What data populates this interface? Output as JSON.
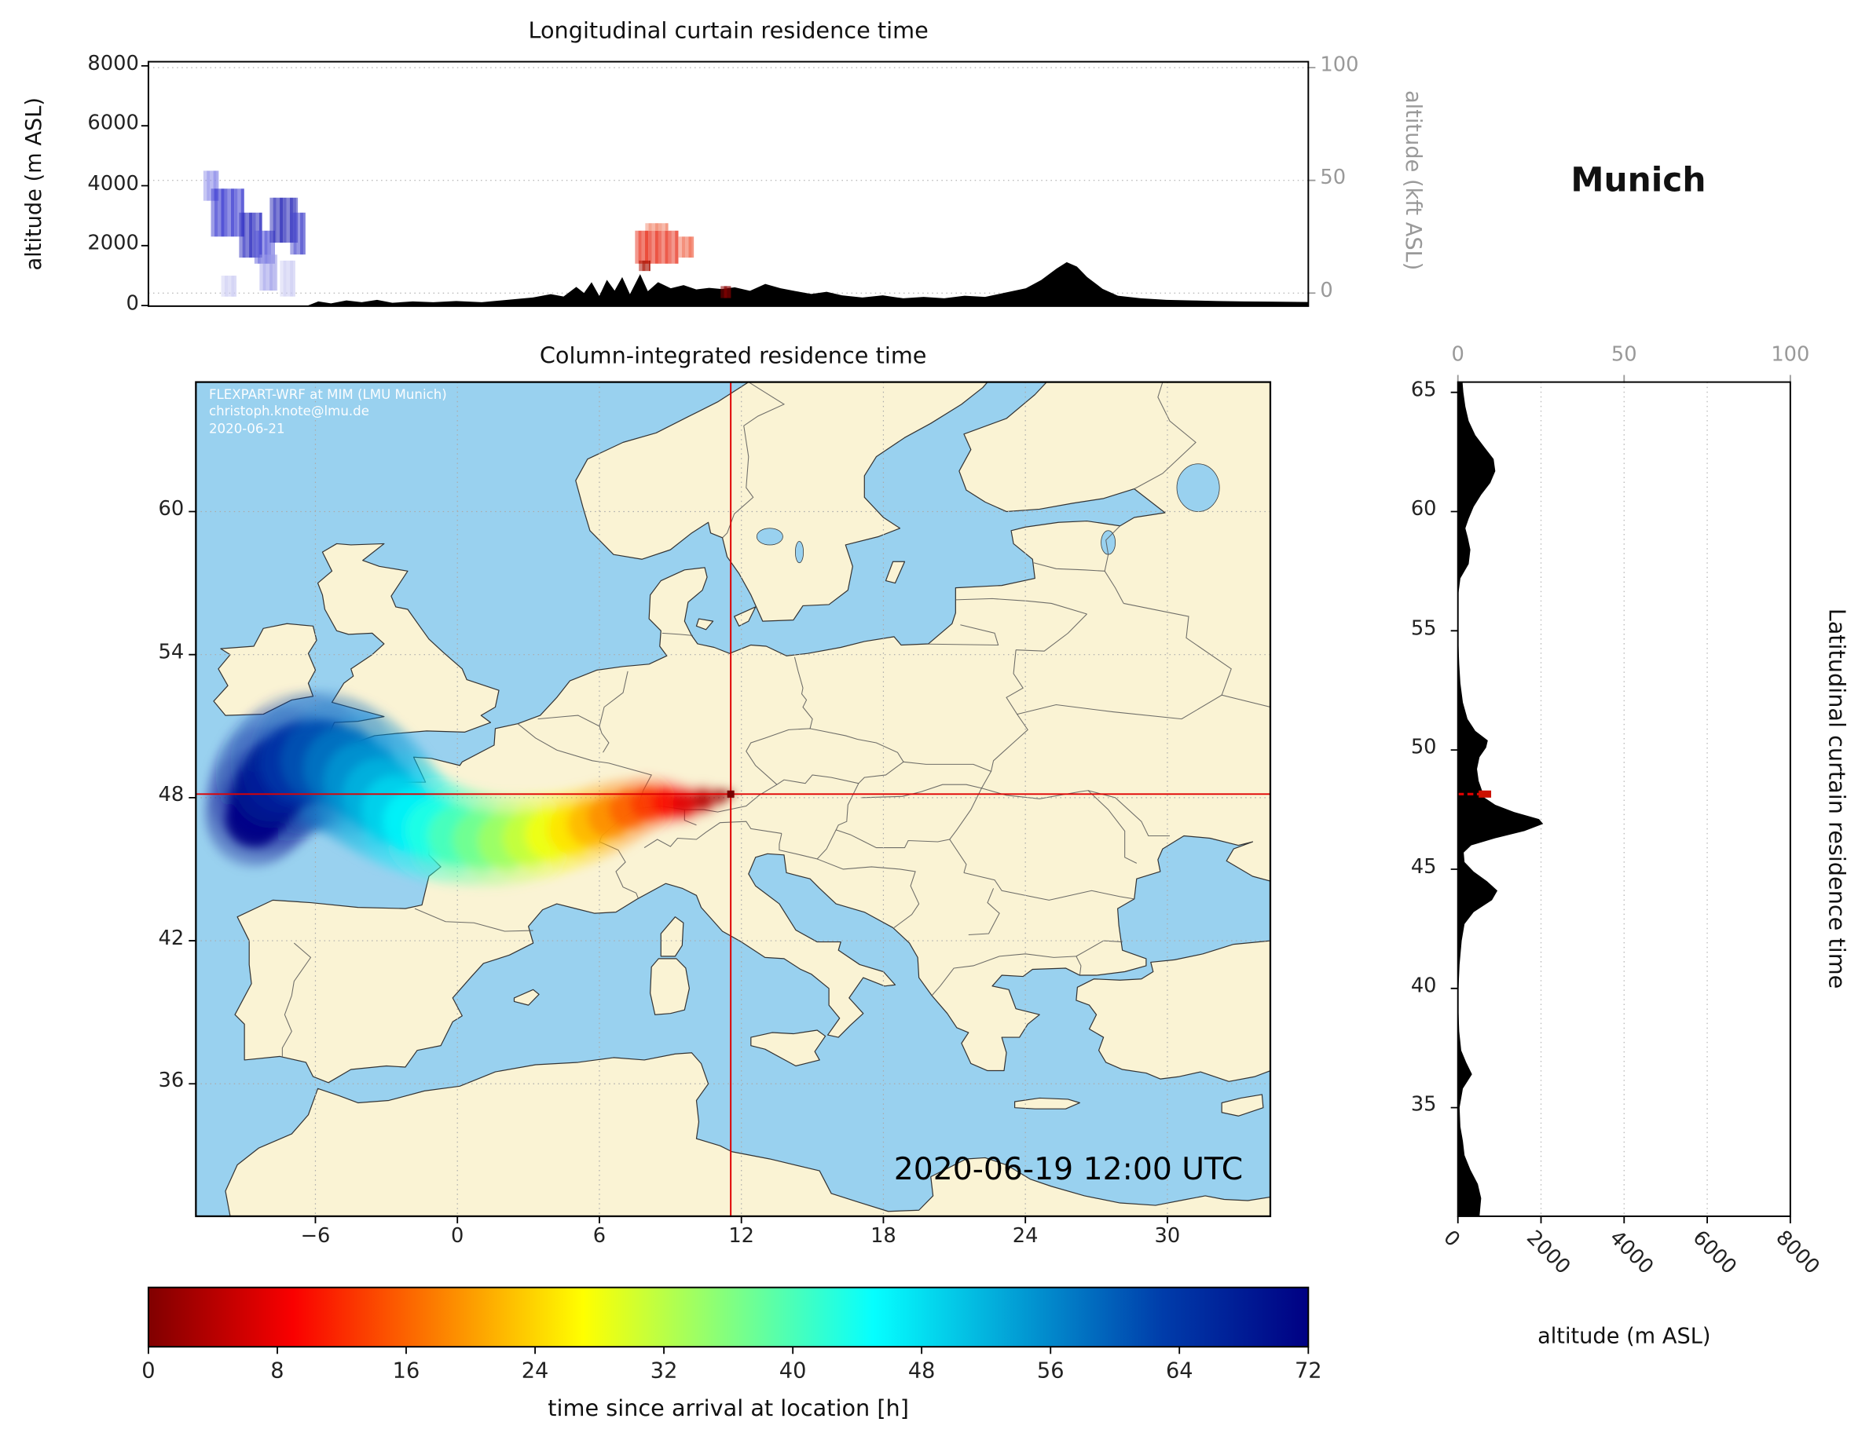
{
  "titles": {
    "location": "Munich"
  },
  "axis_labels": {
    "alt_m": "altitude (m ASL)",
    "alt_kft": "altitude (kft ASL)",
    "alt_m_right": "altitude (m ASL)"
  },
  "overlay": {
    "line1": "FLEXPART-WRF at MIM (LMU Munich)",
    "line2": "christoph.knote@lmu.de",
    "line3": "2020-06-21",
    "datetime": "2020-06-19 12:00 UTC"
  },
  "ticks": {
    "top_left": [
      "8000",
      "6000",
      "4000",
      "2000",
      "0"
    ],
    "top_right": [
      "100",
      "50",
      "0"
    ],
    "map_lon": [
      "−6",
      "0",
      "6",
      "12",
      "18",
      "24",
      "30"
    ],
    "map_lat": [
      "60",
      "54",
      "48",
      "42",
      "36"
    ],
    "right_lat": [
      "65",
      "60",
      "55",
      "50",
      "45",
      "40",
      "35"
    ],
    "right_top": [
      "0",
      "50",
      "100"
    ],
    "right_bottom": [
      "0",
      "2000",
      "4000",
      "6000",
      "8000"
    ],
    "colorbar": [
      "0",
      "8",
      "16",
      "24",
      "32",
      "40",
      "48",
      "56",
      "64",
      "72"
    ]
  },
  "colors": {
    "land": "#faf3d4",
    "ocean": "#99d1ef",
    "coast": "#333333",
    "border": "#555555",
    "crosshair": "#e00000",
    "terrain": "#000000",
    "axis_gray": "#999999",
    "grid": "#aaaaaa"
  },
  "chart_data": [
    {
      "type": "heatmap",
      "name": "longitudinal-curtain",
      "title": "Longitudinal curtain residence time",
      "lon_range": [
        -11.05,
        34.36
      ],
      "alt_range_m": [
        0,
        8160
      ],
      "alt_ticks_m": [
        0,
        2000,
        4000,
        6000,
        8000
      ],
      "alt_kft_ticks": [
        0,
        50,
        100
      ],
      "patches": [
        {
          "lon": [
            -8.9,
            -8.3
          ],
          "alt": [
            3500,
            4500
          ],
          "color": "#8888e8",
          "alpha": 0.85
        },
        {
          "lon": [
            -8.6,
            -7.3
          ],
          "alt": [
            2300,
            3900
          ],
          "color": "#3b3bd0",
          "alpha": 0.9
        },
        {
          "lon": [
            -7.5,
            -6.6
          ],
          "alt": [
            1600,
            3100
          ],
          "color": "#2f2fc0",
          "alpha": 0.9
        },
        {
          "lon": [
            -6.9,
            -6.1
          ],
          "alt": [
            1400,
            2500
          ],
          "color": "#5555d8",
          "alpha": 0.85
        },
        {
          "lon": [
            -6.3,
            -5.2
          ],
          "alt": [
            2100,
            3600
          ],
          "color": "#2a2ab8",
          "alpha": 0.9
        },
        {
          "lon": [
            -5.5,
            -4.9
          ],
          "alt": [
            1700,
            3100
          ],
          "color": "#4646cc",
          "alpha": 0.85
        },
        {
          "lon": [
            -8.2,
            -7.6
          ],
          "alt": [
            300,
            1000
          ],
          "color": "#c8c8f2",
          "alpha": 0.8
        },
        {
          "lon": [
            -6.7,
            -6.0
          ],
          "alt": [
            500,
            1700
          ],
          "color": "#9a9ae8",
          "alpha": 0.8
        },
        {
          "lon": [
            -5.9,
            -5.3
          ],
          "alt": [
            300,
            1500
          ],
          "color": "#c8c8f2",
          "alpha": 0.8
        },
        {
          "lon": [
            8.0,
            9.7
          ],
          "alt": [
            1400,
            2500
          ],
          "color": "#e8321e",
          "alpha": 0.9
        },
        {
          "lon": [
            8.15,
            8.6
          ],
          "alt": [
            1150,
            1500
          ],
          "color": "#a81000",
          "alpha": 0.95
        },
        {
          "lon": [
            9.7,
            10.3
          ],
          "alt": [
            1600,
            2300
          ],
          "color": "#f06448",
          "alpha": 0.85
        },
        {
          "lon": [
            8.4,
            9.3
          ],
          "alt": [
            2500,
            2750
          ],
          "color": "#f0785a",
          "alpha": 0.8
        },
        {
          "lon": [
            11.35,
            11.75
          ],
          "alt": [
            250,
            650
          ],
          "color": "#8b0000",
          "alpha": 1
        }
      ],
      "terrain_lon_alt": [
        [
          -11.05,
          0
        ],
        [
          -4.8,
          5
        ],
        [
          -4.4,
          140
        ],
        [
          -3.9,
          70
        ],
        [
          -3.3,
          170
        ],
        [
          -2.7,
          110
        ],
        [
          -2.1,
          190
        ],
        [
          -1.5,
          90
        ],
        [
          -0.7,
          140
        ],
        [
          0.1,
          110
        ],
        [
          1,
          150
        ],
        [
          2,
          110
        ],
        [
          3,
          190
        ],
        [
          4,
          270
        ],
        [
          4.7,
          380
        ],
        [
          5.2,
          300
        ],
        [
          5.7,
          620
        ],
        [
          6,
          420
        ],
        [
          6.3,
          780
        ],
        [
          6.6,
          320
        ],
        [
          6.9,
          860
        ],
        [
          7.2,
          500
        ],
        [
          7.5,
          950
        ],
        [
          7.8,
          380
        ],
        [
          8.2,
          1050
        ],
        [
          8.5,
          480
        ],
        [
          8.9,
          780
        ],
        [
          9.4,
          580
        ],
        [
          9.9,
          680
        ],
        [
          10.4,
          540
        ],
        [
          10.9,
          590
        ],
        [
          11.4,
          550
        ],
        [
          11.9,
          610
        ],
        [
          12.5,
          490
        ],
        [
          13.1,
          720
        ],
        [
          13.7,
          580
        ],
        [
          14.3,
          480
        ],
        [
          14.9,
          390
        ],
        [
          15.5,
          460
        ],
        [
          16.1,
          340
        ],
        [
          16.9,
          270
        ],
        [
          17.7,
          340
        ],
        [
          18.5,
          240
        ],
        [
          19.3,
          290
        ],
        [
          20.1,
          240
        ],
        [
          20.9,
          330
        ],
        [
          21.7,
          290
        ],
        [
          22.5,
          430
        ],
        [
          23.3,
          580
        ],
        [
          23.9,
          850
        ],
        [
          24.5,
          1230
        ],
        [
          24.9,
          1450
        ],
        [
          25.3,
          1300
        ],
        [
          25.7,
          950
        ],
        [
          26.3,
          560
        ],
        [
          26.9,
          330
        ],
        [
          27.8,
          240
        ],
        [
          28.8,
          190
        ],
        [
          29.8,
          170
        ],
        [
          30.8,
          150
        ],
        [
          31.8,
          140
        ],
        [
          32.8,
          130
        ],
        [
          34.36,
          120
        ]
      ]
    },
    {
      "type": "map",
      "name": "column-integrated",
      "title": "Column-integrated residence time",
      "lon_range": [
        -11.05,
        34.36
      ],
      "lat_range": [
        30.44,
        65.43
      ],
      "lon_ticks": [
        -6,
        0,
        6,
        12,
        18,
        24,
        30
      ],
      "lat_ticks": [
        36,
        42,
        48,
        54,
        60
      ],
      "source_location": {
        "name": "Munich",
        "lon": 11.55,
        "lat": 48.15
      },
      "plume_lon_lat_r_hours": [
        [
          11.55,
          48.15,
          0.12,
          0
        ],
        [
          11.1,
          48.05,
          0.25,
          2
        ],
        [
          10.4,
          47.9,
          0.4,
          4
        ],
        [
          9.6,
          47.75,
          0.5,
          7
        ],
        [
          8.8,
          47.8,
          0.6,
          10
        ],
        [
          8.0,
          47.75,
          0.7,
          13
        ],
        [
          7.2,
          47.5,
          0.8,
          16
        ],
        [
          6.4,
          47.2,
          0.9,
          19
        ],
        [
          5.6,
          46.9,
          0.95,
          22
        ],
        [
          4.8,
          46.65,
          1.0,
          25
        ],
        [
          3.9,
          46.45,
          1.05,
          28
        ],
        [
          3.0,
          46.3,
          1.1,
          31
        ],
        [
          2.0,
          46.2,
          1.15,
          34
        ],
        [
          1.0,
          46.25,
          1.2,
          37
        ],
        [
          0.0,
          46.4,
          1.25,
          40
        ],
        [
          -0.9,
          46.65,
          1.3,
          43
        ],
        [
          -1.8,
          47.0,
          1.35,
          46
        ],
        [
          -2.6,
          47.5,
          1.45,
          49
        ],
        [
          -3.3,
          48.1,
          1.55,
          52
        ],
        [
          -4.0,
          48.7,
          1.65,
          55
        ],
        [
          -4.8,
          49.25,
          1.7,
          58
        ],
        [
          -5.7,
          49.55,
          1.75,
          61
        ],
        [
          -6.6,
          49.45,
          1.75,
          64
        ],
        [
          -7.4,
          49.0,
          1.65,
          67
        ],
        [
          -7.9,
          48.4,
          1.55,
          69
        ],
        [
          -8.3,
          47.7,
          1.4,
          71
        ],
        [
          -8.6,
          47.1,
          1.2,
          72
        ]
      ],
      "colorbar": {
        "label": "time since arrival at location [h]",
        "min": 0,
        "max": 72,
        "ticks": [
          0,
          8,
          16,
          24,
          32,
          40,
          48,
          56,
          64,
          72
        ],
        "colormap": "jet_r"
      }
    },
    {
      "type": "area",
      "name": "latitudinal-curtain",
      "title": "Latitudinal curtain residence time",
      "alt_range_m": [
        0,
        8000
      ],
      "alt_ticks_m": [
        0,
        2000,
        4000,
        6000,
        8000
      ],
      "kft_ticks": [
        0,
        50,
        100
      ],
      "lat_ticks": [
        35,
        40,
        45,
        50,
        55,
        60,
        65
      ],
      "marker": {
        "lat": 48.15,
        "alt_range": [
          500,
          800
        ],
        "color": "#cc1100"
      },
      "terrain_lat_alt": [
        [
          30.44,
          520
        ],
        [
          31.2,
          560
        ],
        [
          31.8,
          480
        ],
        [
          32.4,
          300
        ],
        [
          33.0,
          160
        ],
        [
          33.6,
          120
        ],
        [
          34.2,
          60
        ],
        [
          35.0,
          40
        ],
        [
          35.8,
          120
        ],
        [
          36.4,
          340
        ],
        [
          36.9,
          200
        ],
        [
          37.4,
          80
        ],
        [
          38.2,
          30
        ],
        [
          39.0,
          15
        ],
        [
          40.0,
          15
        ],
        [
          41.0,
          40
        ],
        [
          42.0,
          90
        ],
        [
          42.7,
          160
        ],
        [
          43.2,
          380
        ],
        [
          43.7,
          820
        ],
        [
          44.1,
          950
        ],
        [
          44.5,
          700
        ],
        [
          44.9,
          380
        ],
        [
          45.3,
          160
        ],
        [
          45.7,
          140
        ],
        [
          46.0,
          320
        ],
        [
          46.3,
          900
        ],
        [
          46.6,
          1600
        ],
        [
          46.9,
          2050
        ],
        [
          47.1,
          1950
        ],
        [
          47.4,
          1350
        ],
        [
          47.7,
          900
        ],
        [
          48.0,
          640
        ],
        [
          48.3,
          580
        ],
        [
          48.7,
          500
        ],
        [
          49.2,
          460
        ],
        [
          49.7,
          520
        ],
        [
          50.1,
          680
        ],
        [
          50.4,
          720
        ],
        [
          50.8,
          420
        ],
        [
          51.3,
          230
        ],
        [
          52.0,
          120
        ],
        [
          52.8,
          60
        ],
        [
          53.6,
          30
        ],
        [
          54.4,
          15
        ],
        [
          55.0,
          5
        ],
        [
          55.6,
          0
        ],
        [
          56.4,
          0
        ],
        [
          57.2,
          60
        ],
        [
          57.8,
          260
        ],
        [
          58.4,
          300
        ],
        [
          58.9,
          240
        ],
        [
          59.3,
          180
        ],
        [
          59.7,
          260
        ],
        [
          60.2,
          380
        ],
        [
          60.7,
          560
        ],
        [
          61.2,
          780
        ],
        [
          61.7,
          900
        ],
        [
          62.2,
          860
        ],
        [
          62.7,
          640
        ],
        [
          63.2,
          420
        ],
        [
          63.8,
          260
        ],
        [
          64.4,
          180
        ],
        [
          65.0,
          130
        ],
        [
          65.43,
          110
        ]
      ]
    }
  ]
}
